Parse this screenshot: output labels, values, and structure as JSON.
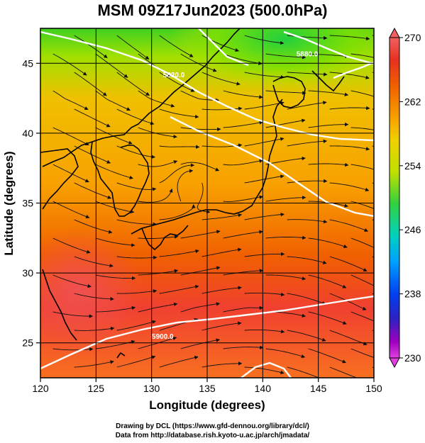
{
  "title": "MSM 09Z17Jun2023 (500.0hPa)",
  "map": {
    "x_axis": {
      "label": "Longitude (degrees)",
      "range": [
        120,
        150
      ],
      "ticks": [
        120,
        125,
        130,
        135,
        140,
        145,
        150
      ]
    },
    "y_axis": {
      "label": "Latitude  (degrees)",
      "range": [
        22.5,
        47.5
      ],
      "ticks": [
        25,
        30,
        35,
        40,
        45
      ]
    },
    "grid": true,
    "field": "temperature_shaded_with_streamlines",
    "contour_labels": [
      {
        "text": "5820.0",
        "lon": 132.0,
        "lat": 44.0
      },
      {
        "text": "5880.0",
        "lon": 144.0,
        "lat": 45.5
      },
      {
        "text": "5900.0",
        "lon": 131.0,
        "lat": 25.3
      }
    ]
  },
  "colorbar": {
    "min": 230,
    "max": 270,
    "labels": [
      "270",
      "262",
      "254",
      "246",
      "238",
      "230"
    ],
    "label_values": [
      270,
      262,
      254,
      246,
      238,
      230
    ],
    "colors": [
      "#e040e0",
      "#a000c0",
      "#3030c0",
      "#0050ff",
      "#00a0ff",
      "#00d0c0",
      "#00d060",
      "#60d020",
      "#c0e000",
      "#f0d000",
      "#f8a000",
      "#f06000",
      "#e83020",
      "#f06060"
    ]
  },
  "credits": {
    "line1": "Drawing by DCL (https://www.gfd-dennou.org/library/dcl/)",
    "line2": "Data from http://database.rish.kyoto-u.ac.jp/arch/jmadata/"
  }
}
